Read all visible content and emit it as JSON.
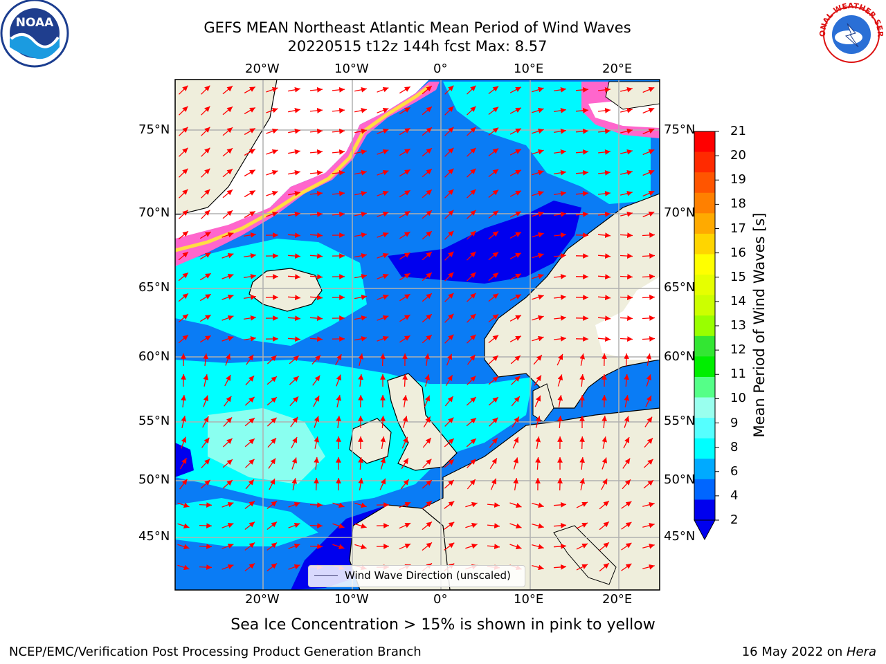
{
  "title": {
    "line1": "GEFS MEAN Northeast Atlantic Mean Period of Wind Waves",
    "line2": "20220515 t12z 144h fcst   Max: 8.57"
  },
  "logos": {
    "noaa_text": "NOAA",
    "nws_text": "NATIONAL WEATHER SERVICE",
    "noaa_icon": "noaa-logo-icon",
    "nws_icon": "nws-logo-icon"
  },
  "axes": {
    "lon_ticks": [
      "20°W",
      "10°W",
      "0°",
      "10°E",
      "20°E"
    ],
    "lat_ticks": [
      "75°N",
      "70°N",
      "65°N",
      "60°N",
      "55°N",
      "50°N",
      "45°N"
    ]
  },
  "colorbar": {
    "label": "Mean Period of Wind Waves [s]",
    "ticks": [
      "21",
      "20",
      "19",
      "18",
      "17",
      "16",
      "15",
      "14",
      "13",
      "12",
      "11",
      "10",
      "9",
      "8",
      "6",
      "4",
      "2"
    ],
    "colors": [
      "#ff0000",
      "#ff2a00",
      "#ff5500",
      "#ff8000",
      "#ffaa00",
      "#ffd500",
      "#ffff00",
      "#e6ff00",
      "#ccff00",
      "#99ff00",
      "#33e633",
      "#00ee00",
      "#55ff88",
      "#99ffee",
      "#55ffff",
      "#00ffff",
      "#00aaff",
      "#0066ff",
      "#0000ee"
    ],
    "extend_color": "#0000ee"
  },
  "legend": {
    "text": "Wind Wave Direction (unscaled)"
  },
  "caption": "Sea Ice Concentration > 15% is shown in pink to yellow",
  "footer": {
    "left": "NCEP/EMC/Verification Post Processing Product Generation Branch",
    "right_prefix": "16 May 2022 on ",
    "right_host": "Hera"
  },
  "colors": {
    "land": "#efeedc",
    "ocean_base": "#0a7cf5",
    "ocean_light": "#00ffff",
    "ocean_dark": "#0000ee",
    "arrow": "#ff0000"
  }
}
